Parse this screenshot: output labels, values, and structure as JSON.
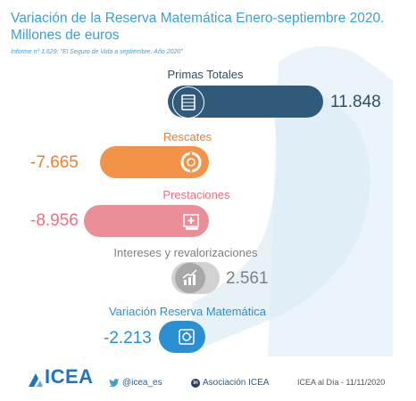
{
  "title_line1": "Variación de la Reserva Matemática Enero-septiembre 2020.",
  "title_line2": "Millones de euros",
  "subtitle": "Informe nº 1.629: \"El Seguro de Vida a septiembre. Año 2020\"",
  "colors": {
    "title": "#3aa0d8",
    "primas": "#2f5a7a",
    "rescates": "#f3934a",
    "prestaciones": "#ec8e98",
    "intereses": "#a8a8a8",
    "variacion": "#2b8fd4"
  },
  "chart_data": {
    "type": "bar",
    "title": "Variación de la Reserva Matemática Enero-septiembre 2020.",
    "categories": [
      "Primas Totales",
      "Rescates",
      "Prestaciones",
      "Intereses y revalorizaciones",
      "Variación Reserva Matemática"
    ],
    "values": [
      11848,
      -7665,
      -8956,
      2561,
      -2213
    ],
    "value_labels": [
      "11.848",
      "-7.665",
      "-8.956",
      "2.561",
      "-2.213"
    ],
    "icons": [
      "money-stack-icon",
      "lifebuoy-icon",
      "hospital-icon",
      "growth-chart-icon",
      "safe-icon"
    ]
  },
  "footer": {
    "logo": "ICEA",
    "twitter": "@icea_es",
    "linkedin": "Asociación ICEA",
    "date": "ICEA al Día - 11/11/2020"
  }
}
